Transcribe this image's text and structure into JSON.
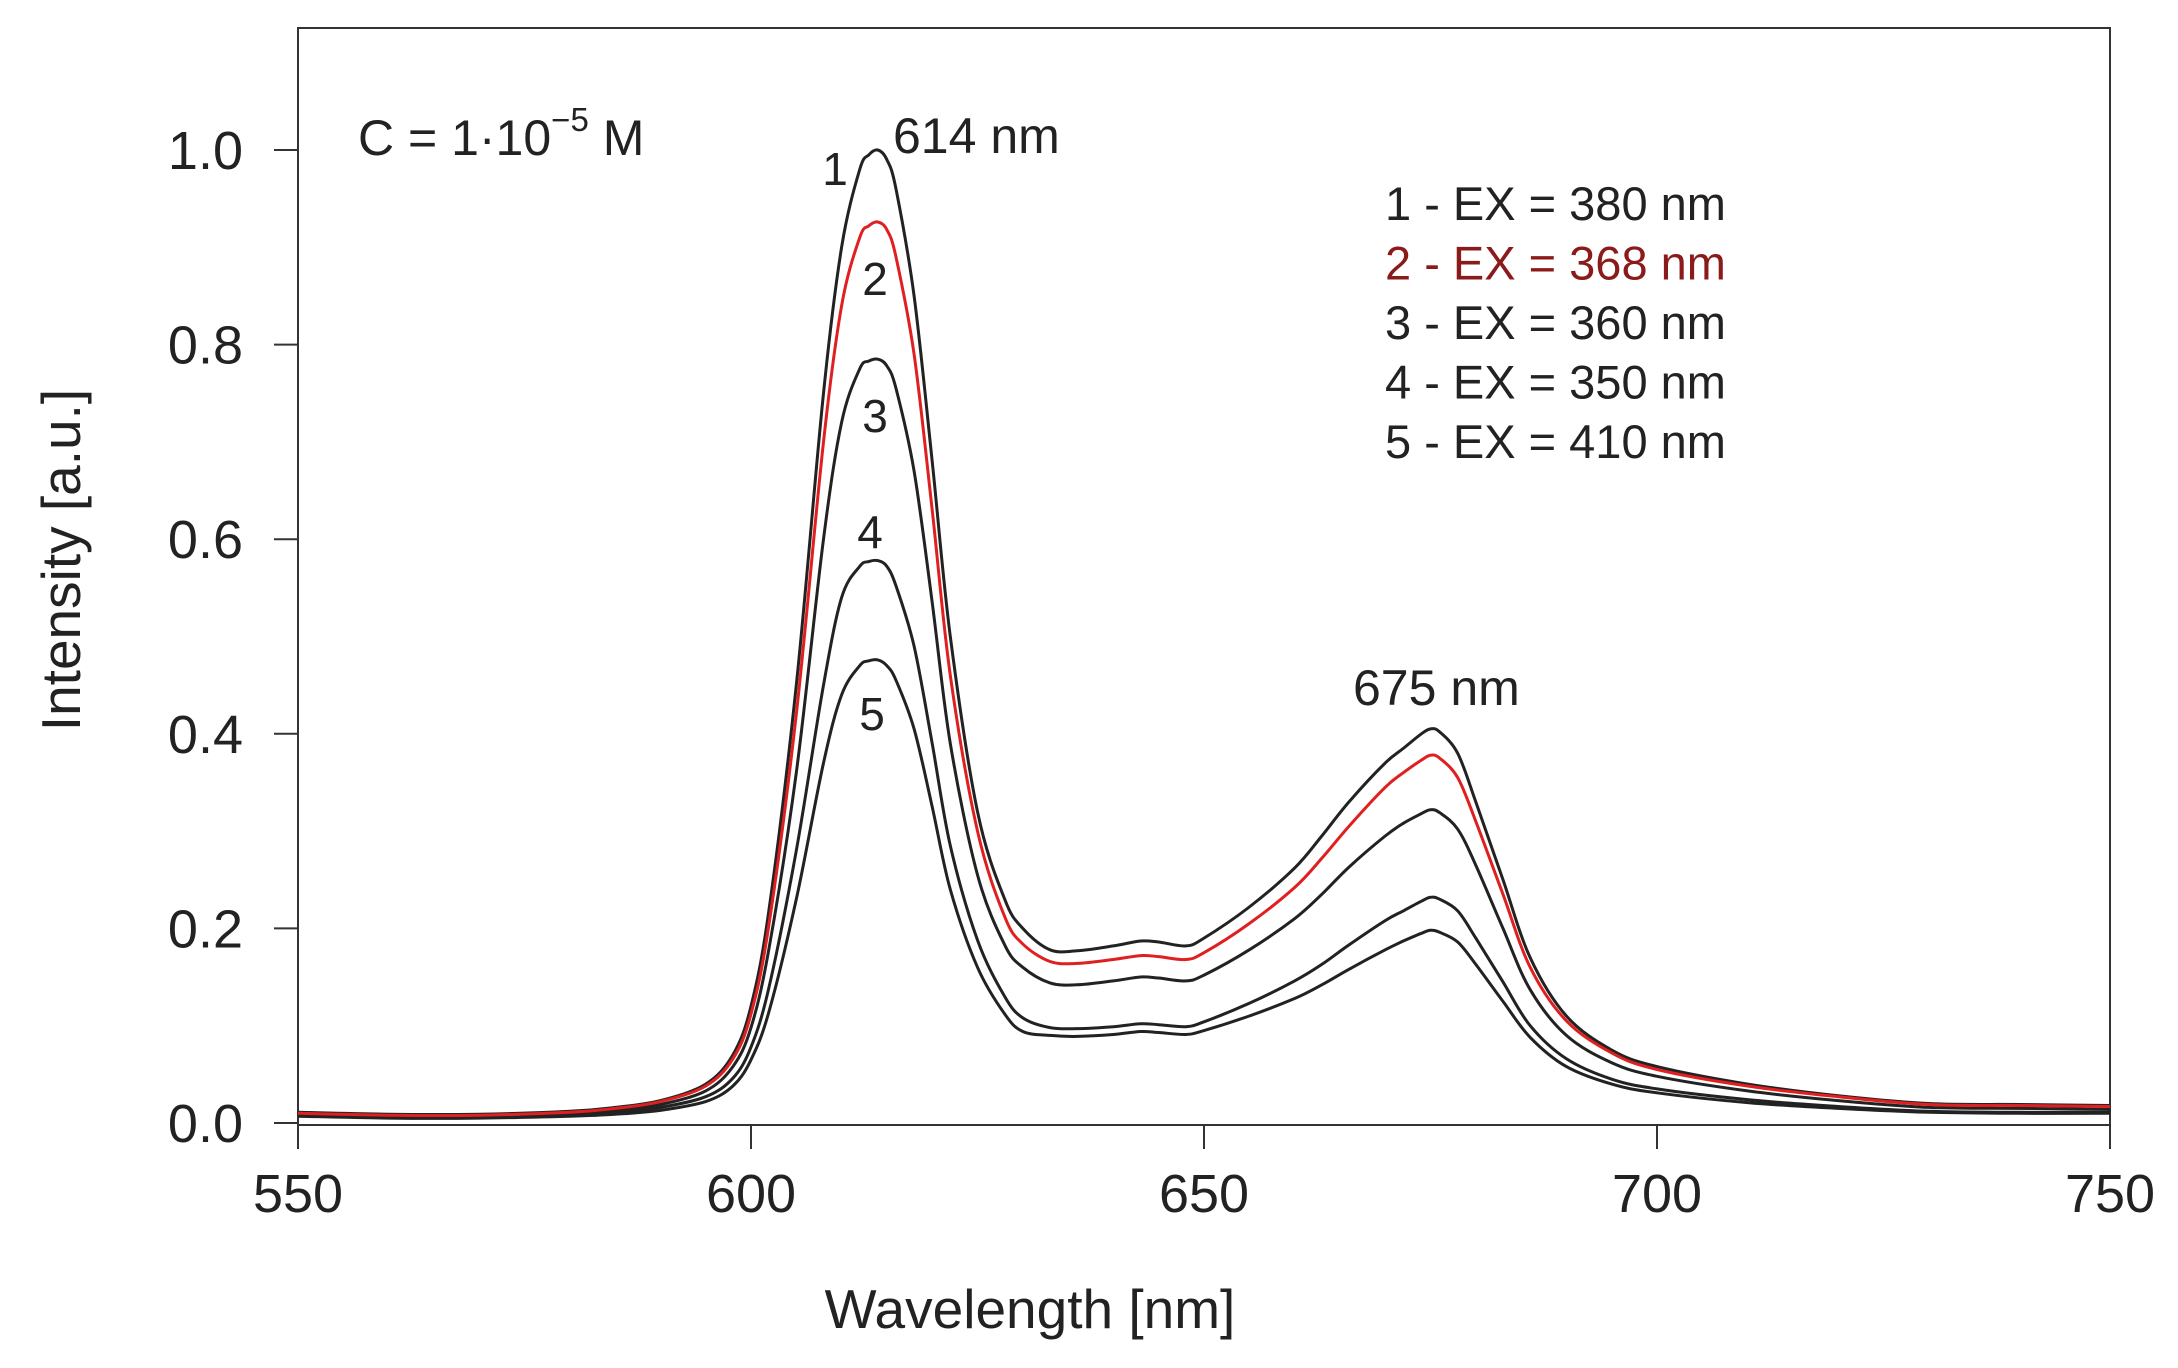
{
  "chart_data": {
    "type": "line",
    "title": "",
    "xlabel": "Wavelength [nm]",
    "ylabel": "Intensity [a.u.]",
    "xlim": [
      550,
      750
    ],
    "ylim": [
      0,
      1.1
    ],
    "xticks": [
      550,
      600,
      650,
      700,
      750
    ],
    "xtick_labels": [
      "550",
      "600",
      "650",
      "700",
      "750"
    ],
    "yticks": [
      0.0,
      0.2,
      0.4,
      0.6,
      0.8,
      1.0
    ],
    "ytick_labels": [
      "0.0",
      "0.2",
      "0.4",
      "0.6",
      "0.8",
      "1.0"
    ],
    "grid": false,
    "legend_position": "top-right",
    "annotations": {
      "concentration": {
        "base": "C = 1·10",
        "sup": "−5",
        "unit": " M"
      },
      "peak1": "614 nm",
      "peak2": "675 nm"
    },
    "x": [
      550,
      560,
      570,
      580,
      585,
      590,
      595,
      598,
      600,
      602,
      605,
      608,
      610,
      612,
      613,
      614,
      615,
      616,
      618,
      620,
      622,
      625,
      628,
      630,
      633,
      636,
      640,
      643,
      645,
      648,
      650,
      655,
      660,
      663,
      666,
      670,
      672,
      674,
      675,
      676,
      678,
      680,
      683,
      686,
      690,
      695,
      700,
      710,
      720,
      730,
      740,
      750
    ],
    "series": [
      {
        "name": "1",
        "legend": "1 - EX = 380 nm",
        "color": "#222222",
        "values": [
          0.011,
          0.009,
          0.009,
          0.012,
          0.016,
          0.023,
          0.04,
          0.07,
          0.12,
          0.22,
          0.45,
          0.75,
          0.9,
          0.98,
          0.995,
          1.0,
          0.99,
          0.96,
          0.85,
          0.68,
          0.5,
          0.32,
          0.23,
          0.2,
          0.178,
          0.177,
          0.182,
          0.187,
          0.186,
          0.182,
          0.19,
          0.222,
          0.262,
          0.295,
          0.33,
          0.37,
          0.385,
          0.4,
          0.405,
          0.402,
          0.38,
          0.33,
          0.25,
          0.17,
          0.11,
          0.075,
          0.058,
          0.04,
          0.028,
          0.02,
          0.019,
          0.018
        ]
      },
      {
        "name": "2",
        "legend": "2 - EX = 368 nm",
        "color": "#e02020",
        "legend_color": "#8b1a1a",
        "values": [
          0.01,
          0.008,
          0.008,
          0.011,
          0.015,
          0.022,
          0.038,
          0.066,
          0.112,
          0.205,
          0.42,
          0.7,
          0.84,
          0.91,
          0.922,
          0.926,
          0.918,
          0.89,
          0.79,
          0.63,
          0.46,
          0.3,
          0.212,
          0.184,
          0.166,
          0.164,
          0.168,
          0.172,
          0.171,
          0.168,
          0.175,
          0.205,
          0.242,
          0.272,
          0.305,
          0.345,
          0.36,
          0.373,
          0.378,
          0.375,
          0.355,
          0.31,
          0.235,
          0.16,
          0.105,
          0.072,
          0.055,
          0.038,
          0.027,
          0.019,
          0.018,
          0.017
        ]
      },
      {
        "name": "3",
        "legend": "3 - EX = 360 nm",
        "color": "#222222",
        "values": [
          0.009,
          0.007,
          0.007,
          0.01,
          0.013,
          0.019,
          0.033,
          0.058,
          0.098,
          0.18,
          0.36,
          0.6,
          0.72,
          0.775,
          0.783,
          0.785,
          0.778,
          0.755,
          0.67,
          0.535,
          0.39,
          0.255,
          0.183,
          0.16,
          0.144,
          0.142,
          0.146,
          0.15,
          0.149,
          0.146,
          0.152,
          0.178,
          0.21,
          0.235,
          0.263,
          0.295,
          0.308,
          0.318,
          0.322,
          0.319,
          0.302,
          0.265,
          0.2,
          0.137,
          0.09,
          0.062,
          0.048,
          0.033,
          0.023,
          0.016,
          0.015,
          0.014
        ]
      },
      {
        "name": "4",
        "legend": "4 - EX = 350 nm",
        "color": "#222222",
        "values": [
          0.008,
          0.006,
          0.006,
          0.008,
          0.011,
          0.016,
          0.027,
          0.046,
          0.078,
          0.14,
          0.28,
          0.45,
          0.54,
          0.572,
          0.577,
          0.578,
          0.572,
          0.552,
          0.49,
          0.39,
          0.285,
          0.188,
          0.13,
          0.108,
          0.098,
          0.097,
          0.099,
          0.102,
          0.101,
          0.099,
          0.104,
          0.123,
          0.146,
          0.163,
          0.183,
          0.208,
          0.218,
          0.228,
          0.232,
          0.23,
          0.218,
          0.19,
          0.145,
          0.1,
          0.066,
          0.045,
          0.035,
          0.024,
          0.017,
          0.012,
          0.011,
          0.011
        ]
      },
      {
        "name": "5",
        "legend": "5 - EX = 410 nm",
        "color": "#222222",
        "values": [
          0.007,
          0.005,
          0.005,
          0.007,
          0.009,
          0.013,
          0.022,
          0.038,
          0.065,
          0.115,
          0.23,
          0.37,
          0.44,
          0.47,
          0.475,
          0.476,
          0.47,
          0.455,
          0.405,
          0.325,
          0.24,
          0.16,
          0.112,
          0.094,
          0.09,
          0.089,
          0.091,
          0.094,
          0.093,
          0.091,
          0.095,
          0.11,
          0.128,
          0.142,
          0.158,
          0.178,
          0.187,
          0.195,
          0.198,
          0.196,
          0.186,
          0.163,
          0.125,
          0.088,
          0.058,
          0.04,
          0.031,
          0.021,
          0.015,
          0.011,
          0.01,
          0.01
        ]
      }
    ]
  }
}
